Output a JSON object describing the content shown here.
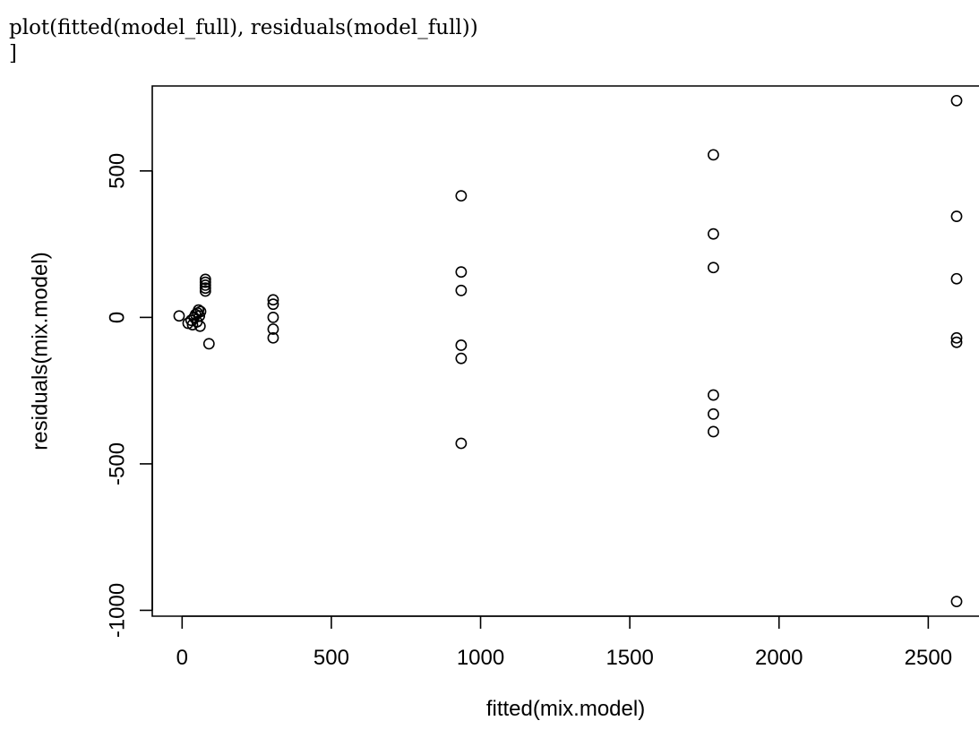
{
  "code": {
    "line1": "plot(fitted(model_full), residuals(model_full))",
    "line2": "]"
  },
  "chart_data": {
    "type": "scatter",
    "title": "",
    "xlabel": "fitted(mix.model)",
    "ylabel": "residuals(mix.model)",
    "xlim": [
      -100,
      2670
    ],
    "ylim": [
      -1020,
      790
    ],
    "x_ticks": [
      0,
      500,
      1000,
      1500,
      2000,
      2500
    ],
    "y_ticks": [
      -1000,
      -500,
      0,
      500
    ],
    "x_tick_labels": [
      "0",
      "500",
      "1000",
      "1500",
      "2000",
      "2500"
    ],
    "y_tick_labels": [
      "-1000",
      "-500",
      "0",
      "500"
    ],
    "grid": false,
    "legend": "none",
    "marker": "open-circle",
    "points": [
      {
        "x": -10,
        "y": 5
      },
      {
        "x": 20,
        "y": -20
      },
      {
        "x": 30,
        "y": -10
      },
      {
        "x": 35,
        "y": -25
      },
      {
        "x": 40,
        "y": 0
      },
      {
        "x": 45,
        "y": 10
      },
      {
        "x": 50,
        "y": -15
      },
      {
        "x": 52,
        "y": 15
      },
      {
        "x": 55,
        "y": 25
      },
      {
        "x": 58,
        "y": 5
      },
      {
        "x": 60,
        "y": -30
      },
      {
        "x": 62,
        "y": 20
      },
      {
        "x": 78,
        "y": 130
      },
      {
        "x": 78,
        "y": 120
      },
      {
        "x": 78,
        "y": 110
      },
      {
        "x": 78,
        "y": 100
      },
      {
        "x": 78,
        "y": 90
      },
      {
        "x": 90,
        "y": -90
      },
      {
        "x": 305,
        "y": 60
      },
      {
        "x": 305,
        "y": 45
      },
      {
        "x": 305,
        "y": 0
      },
      {
        "x": 305,
        "y": -40
      },
      {
        "x": 305,
        "y": -70
      },
      {
        "x": 935,
        "y": 415
      },
      {
        "x": 935,
        "y": 155
      },
      {
        "x": 935,
        "y": 92
      },
      {
        "x": 935,
        "y": -95
      },
      {
        "x": 935,
        "y": -140
      },
      {
        "x": 935,
        "y": -430
      },
      {
        "x": 1780,
        "y": 555
      },
      {
        "x": 1780,
        "y": 285
      },
      {
        "x": 1780,
        "y": 170
      },
      {
        "x": 1780,
        "y": -265
      },
      {
        "x": 1780,
        "y": -330
      },
      {
        "x": 1780,
        "y": -390
      },
      {
        "x": 2595,
        "y": 740
      },
      {
        "x": 2595,
        "y": 345
      },
      {
        "x": 2595,
        "y": 132
      },
      {
        "x": 2595,
        "y": -70
      },
      {
        "x": 2595,
        "y": -85
      },
      {
        "x": 2595,
        "y": -970
      }
    ]
  }
}
